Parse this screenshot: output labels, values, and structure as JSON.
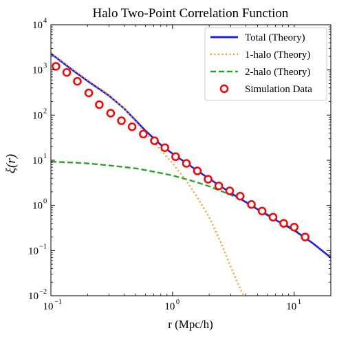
{
  "chart_data": {
    "type": "line",
    "title": "Halo Two-Point Correlation Function",
    "xlabel": "r (Mpc/h)",
    "ylabel": "ξ(r)",
    "xscale": "log",
    "yscale": "log",
    "xlim": [
      0.1,
      20
    ],
    "ylim": [
      0.01,
      10000
    ],
    "grid": false,
    "legend_position": "top-right",
    "x_ticks": [
      {
        "value": 0.1,
        "mantissa": "10",
        "exp": "−1"
      },
      {
        "value": 1,
        "mantissa": "10",
        "exp": "0"
      },
      {
        "value": 10,
        "mantissa": "10",
        "exp": "1"
      }
    ],
    "y_ticks": [
      {
        "value": 0.01,
        "mantissa": "10",
        "exp": "−2"
      },
      {
        "value": 0.1,
        "mantissa": "10",
        "exp": "−1"
      },
      {
        "value": 1,
        "mantissa": "10",
        "exp": "0"
      },
      {
        "value": 10,
        "mantissa": "10",
        "exp": "1"
      },
      {
        "value": 100,
        "mantissa": "10",
        "exp": "2"
      },
      {
        "value": 1000,
        "mantissa": "10",
        "exp": "3"
      },
      {
        "value": 10000,
        "mantissa": "10",
        "exp": "4"
      }
    ],
    "series": [
      {
        "name": "Total (Theory)",
        "style": "solid",
        "color": "#1f1fe6",
        "x": [
          0.1,
          0.15,
          0.2,
          0.3,
          0.4,
          0.5,
          0.6,
          0.8,
          1.0,
          1.5,
          2.0,
          3.0,
          4.0,
          5.0,
          7.0,
          10.0,
          14.0,
          20.0
        ],
        "y": [
          2300,
          1000,
          570,
          270,
          140,
          75,
          45,
          22,
          14,
          6.6,
          3.9,
          1.9,
          1.18,
          0.82,
          0.48,
          0.28,
          0.15,
          0.07
        ]
      },
      {
        "name": "1-halo (Theory)",
        "style": "dotted",
        "color": "#ff9a2e",
        "x": [
          0.1,
          0.15,
          0.2,
          0.3,
          0.4,
          0.5,
          0.6,
          0.8,
          1.0,
          1.3,
          1.6,
          2.0,
          2.5,
          3.0,
          3.5,
          4.0
        ],
        "y": [
          2400,
          1050,
          600,
          280,
          140,
          70,
          40,
          17,
          8.5,
          3.5,
          1.5,
          0.55,
          0.15,
          0.045,
          0.017,
          0.008
        ]
      },
      {
        "name": "2-halo (Theory)",
        "style": "dashed",
        "color": "#2ca02c",
        "x": [
          0.1,
          0.15,
          0.2,
          0.3,
          0.5,
          0.7,
          1.0,
          1.5,
          2.0,
          3.0,
          4.0,
          5.0,
          7.0,
          10.0,
          14.0,
          20.0
        ],
        "y": [
          9.3,
          8.9,
          8.5,
          7.7,
          6.6,
          5.6,
          4.6,
          3.4,
          2.65,
          1.72,
          1.2,
          0.84,
          0.5,
          0.29,
          0.15,
          0.07
        ]
      },
      {
        "name": "Simulation Data",
        "style": "markers",
        "color": "#ff0000",
        "x": [
          0.11,
          0.135,
          0.165,
          0.205,
          0.25,
          0.31,
          0.38,
          0.465,
          0.575,
          0.71,
          0.865,
          1.06,
          1.3,
          1.6,
          1.96,
          2.4,
          2.95,
          3.6,
          4.45,
          5.45,
          6.7,
          8.2,
          10.0,
          12.3
        ],
        "y": [
          1200,
          880,
          560,
          310,
          170,
          110,
          75,
          55,
          38,
          27,
          19,
          12,
          8.5,
          5.8,
          3.8,
          2.7,
          2.1,
          1.6,
          1.05,
          0.75,
          0.55,
          0.4,
          0.33,
          0.2
        ]
      }
    ]
  }
}
